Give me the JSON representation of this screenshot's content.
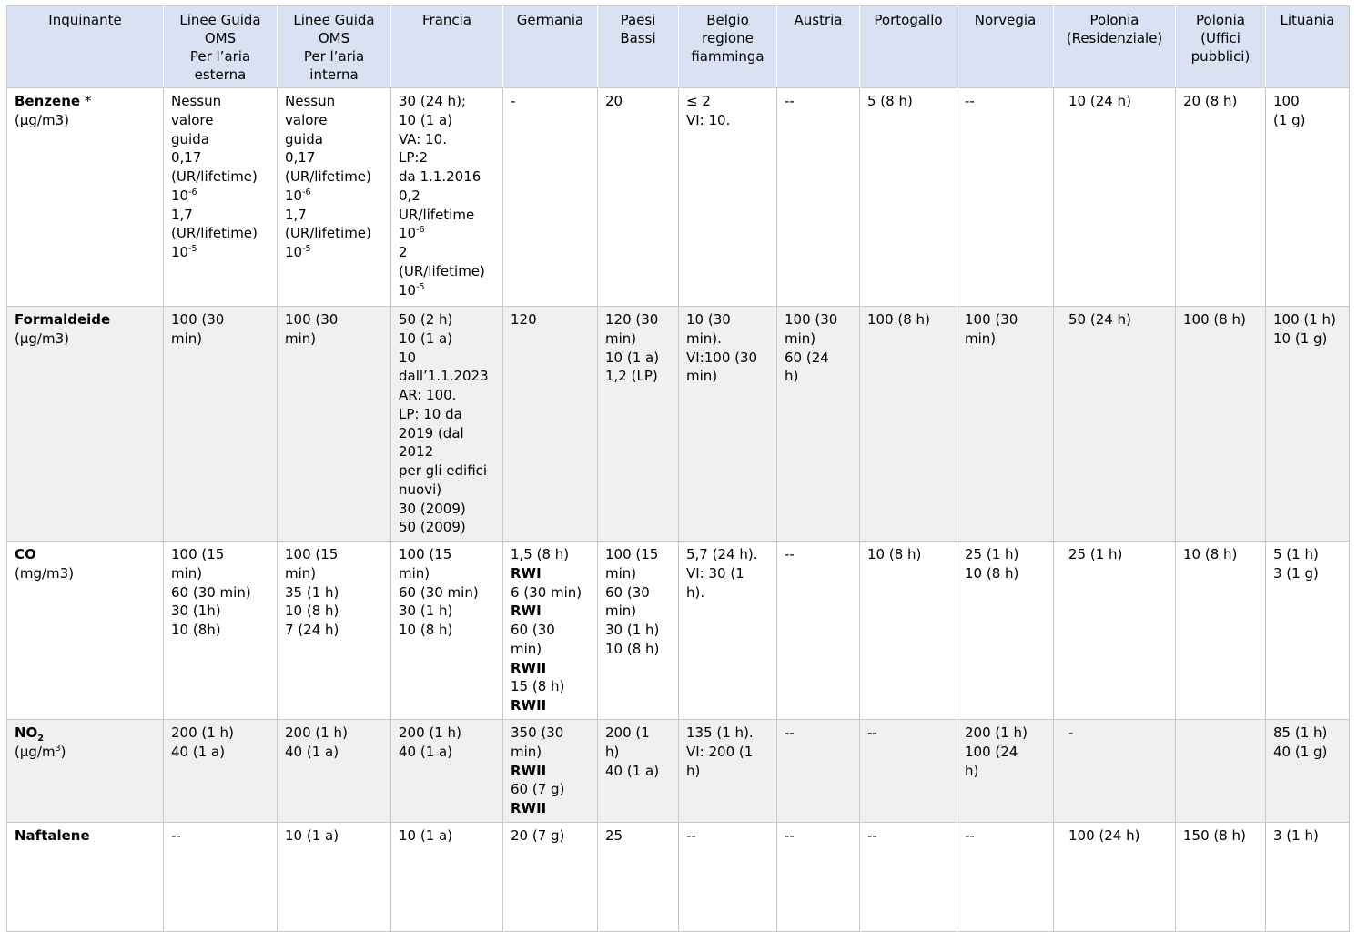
{
  "colors": {
    "header_bg": "#d9e2f3",
    "row_bg": "#ffffff",
    "row_alt_bg": "#f0f0f0",
    "border": "#c9c9c9",
    "text": "#000000"
  },
  "table": {
    "columns": [
      {
        "id": "inquinante",
        "label": "Inquinante"
      },
      {
        "id": "oms_esterna",
        "label": "Linee Guida\nOMS\nPer l’aria\nesterna"
      },
      {
        "id": "oms_interna",
        "label": "Linee Guida\nOMS\nPer l’aria\ninterna"
      },
      {
        "id": "francia",
        "label": "Francia"
      },
      {
        "id": "germania",
        "label": "Germania"
      },
      {
        "id": "paesi_bassi",
        "label": "Paesi\nBassi"
      },
      {
        "id": "belgio",
        "label": "Belgio\nregione\nfiamminga"
      },
      {
        "id": "austria",
        "label": "Austria"
      },
      {
        "id": "portogallo",
        "label": "Portogallo"
      },
      {
        "id": "norvegia",
        "label": "Norvegia"
      },
      {
        "id": "polonia_res",
        "label": "Polonia\n(Residenziale)"
      },
      {
        "id": "polonia_uffici",
        "label": "Polonia\n(Uffici\npubblici)"
      },
      {
        "id": "lituania",
        "label": "Lituania"
      }
    ],
    "rows": [
      {
        "name": "benzene",
        "cells": [
          [
            [
              {
                "t": "Benzene",
                "b": true
              },
              " *"
            ],
            [
              "(µg/m3)"
            ]
          ],
          [
            [
              "Nessun"
            ],
            [
              "valore"
            ],
            [
              "guida"
            ],
            [
              "0,17"
            ],
            [
              "(UR/lifetime)"
            ],
            [
              "10",
              {
                "t": "-6",
                "sup": true
              }
            ],
            [
              "1,7"
            ],
            [
              "(UR/lifetime)"
            ],
            [
              "10",
              {
                "t": "-5",
                "sup": true
              }
            ]
          ],
          [
            [
              "Nessun"
            ],
            [
              "valore"
            ],
            [
              "guida"
            ],
            [
              "0,17"
            ],
            [
              "(UR/lifetime)"
            ],
            [
              "10",
              {
                "t": "-6",
                "sup": true
              }
            ],
            [
              "1,7"
            ],
            [
              "(UR/lifetime)"
            ],
            [
              "10",
              {
                "t": "-5",
                "sup": true
              }
            ]
          ],
          [
            [
              "30 (24 h);"
            ],
            [
              "10 (1 a)"
            ],
            [
              "VA: 10."
            ],
            [
              "LP:2"
            ],
            [
              "da 1.1.2016"
            ],
            [
              "0,2"
            ],
            [
              "UR/lifetime"
            ],
            [
              "10",
              {
                "t": "-6",
                "sup": true
              }
            ],
            [
              "2"
            ],
            [
              "(UR/lifetime)"
            ],
            [
              "10",
              {
                "t": "-5",
                "sup": true
              }
            ]
          ],
          "-",
          "20",
          "≤ 2\nVI: 10.",
          "--",
          "5 (8 h)",
          "--",
          "10 (24 h)",
          "20 (8 h)",
          "100\n(1 g)"
        ]
      },
      {
        "name": "formaldeide",
        "cells": [
          [
            [
              {
                "t": "Formaldeide",
                "b": true
              }
            ],
            [
              "(µg/m3)"
            ]
          ],
          "100 (30\nmin)",
          "100 (30\nmin)",
          "50 (2 h)\n10 (1 a)\n10\ndall’1.1.2023\nAR: 100.\nLP: 10 da\n2019 (dal\n2012\nper gli edifici\nnuovi)\n30 (2009)\n50 (2009)",
          "120",
          "120 (30\nmin)\n10 (1 a)\n1,2 (LP)",
          "10 (30\nmin).\nVI:100 (30\nmin)",
          "100 (30\nmin)\n60 (24\nh)",
          "100 (8 h)",
          "100 (30\nmin)",
          "50 (24 h)",
          "100 (8 h)",
          "100 (1 h)\n10 (1 g)"
        ]
      },
      {
        "name": "co",
        "cells": [
          [
            [
              {
                "t": "CO",
                "b": true
              }
            ],
            [
              "(mg/m3)"
            ]
          ],
          "100 (15\nmin)\n60 (30 min)\n30 (1h)\n10 (8h)",
          "100 (15\nmin)\n35 (1 h)\n10 (8 h)\n7 (24 h)",
          "100 (15\nmin)\n60 (30 min)\n30 (1 h)\n10 (8 h)",
          [
            [
              "1,5 (8 h)"
            ],
            [
              {
                "t": "RWI",
                "b": true
              }
            ],
            [
              "6 (30 min)"
            ],
            [
              {
                "t": "RWI",
                "b": true
              }
            ],
            [
              "60 (30"
            ],
            [
              "min)"
            ],
            [
              {
                "t": "RWII",
                "b": true
              }
            ],
            [
              "15 (8 h)"
            ],
            [
              {
                "t": "RWII",
                "b": true
              }
            ]
          ],
          "100 (15\nmin)\n60 (30\nmin)\n30 (1 h)\n10 (8 h)",
          "5,7 (24 h).\nVI: 30 (1\nh).",
          "--",
          "10 (8 h)",
          "25 (1 h)\n10 (8 h)",
          "25 (1 h)",
          "10 (8 h)",
          "5 (1 h)\n3 (1 g)"
        ]
      },
      {
        "name": "no2",
        "cells": [
          [
            [
              {
                "t": "NO",
                "b": true
              },
              {
                "t": "2",
                "b": true,
                "sub": true
              }
            ],
            [
              "(µg/m",
              {
                "t": "3",
                "sup": true
              },
              ")"
            ]
          ],
          "200 (1 h)\n40 (1 a)",
          "200 (1 h)\n40 (1 a)",
          "200 (1 h)\n40 (1 a)",
          [
            [
              "350 (30"
            ],
            [
              "min)"
            ],
            [
              {
                "t": "RWII",
                "b": true
              }
            ],
            [
              "60 (7 g)"
            ],
            [
              {
                "t": "RWII",
                "b": true
              }
            ]
          ],
          "200 (1\nh)\n40 (1 a)",
          "135 (1 h).\nVI: 200 (1\nh)",
          "--",
          "--",
          "200 (1 h)\n100 (24\nh)",
          "-",
          "",
          "85 (1 h)\n40 (1 g)"
        ]
      },
      {
        "name": "naftalene",
        "cells": [
          [
            [
              {
                "t": "Naftalene",
                "b": true
              }
            ]
          ],
          "--",
          "10 (1 a)",
          "10 (1 a)",
          "20 (7 g)",
          "25",
          "--",
          "--",
          "--",
          "--",
          "100 (24 h)",
          "150 (8 h)",
          "3 (1 h)"
        ]
      }
    ]
  }
}
